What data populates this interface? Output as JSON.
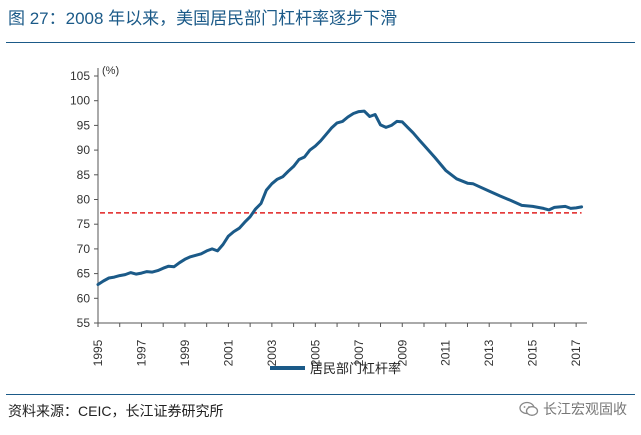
{
  "header": {
    "title": "图 27：2008 年以来，美国居民部门杠杆率逐步下滑"
  },
  "footer": {
    "source": "资料来源：CEIC，长江证券研究所",
    "watermark": "长江宏观固收",
    "watermark_icon": "wechat-icon"
  },
  "colors": {
    "accent": "#1b5a88",
    "series": "#1b5a88",
    "reference": "#e02020"
  },
  "chart_data": {
    "type": "line",
    "title": "",
    "xlabel": "",
    "ylabel": "(%)",
    "xlim": [
      1995,
      2017.5
    ],
    "ylim": [
      55,
      105
    ],
    "yticks": [
      55,
      60,
      65,
      70,
      75,
      80,
      85,
      90,
      95,
      100,
      105
    ],
    "xticks": [
      "1995",
      "1997",
      "1999",
      "2001",
      "2003",
      "2005",
      "2007",
      "2009",
      "2011",
      "2013",
      "2015",
      "2017"
    ],
    "grid": false,
    "legend": "bottom-center",
    "series": [
      {
        "name": "居民部门杠杆率",
        "x": [
          1995.0,
          1995.25,
          1995.5,
          1995.75,
          1996.0,
          1996.25,
          1996.5,
          1996.75,
          1997.0,
          1997.25,
          1997.5,
          1997.75,
          1998.0,
          1998.25,
          1998.5,
          1998.75,
          1999.0,
          1999.25,
          1999.5,
          1999.75,
          2000.0,
          2000.25,
          2000.5,
          2000.75,
          2001.0,
          2001.25,
          2001.5,
          2001.75,
          2002.0,
          2002.25,
          2002.5,
          2002.75,
          2003.0,
          2003.25,
          2003.5,
          2003.75,
          2004.0,
          2004.25,
          2004.5,
          2004.75,
          2005.0,
          2005.25,
          2005.5,
          2005.75,
          2006.0,
          2006.25,
          2006.5,
          2006.75,
          2007.0,
          2007.25,
          2007.5,
          2007.75,
          2008.0,
          2008.25,
          2008.5,
          2008.75,
          2009.0,
          2009.25,
          2009.5,
          2009.75,
          2010.0,
          2010.5,
          2011.0,
          2011.5,
          2012.0,
          2012.25,
          2012.5,
          2013.0,
          2013.5,
          2014.0,
          2014.5,
          2015.0,
          2015.5,
          2015.75,
          2016.0,
          2016.25,
          2016.5,
          2016.75,
          2017.0,
          2017.25
        ],
        "values": [
          62.8,
          63.5,
          64.1,
          64.3,
          64.6,
          64.8,
          65.2,
          64.9,
          65.1,
          65.4,
          65.3,
          65.6,
          66.1,
          66.5,
          66.4,
          67.2,
          67.9,
          68.4,
          68.7,
          69.0,
          69.6,
          70.0,
          69.6,
          70.9,
          72.6,
          73.5,
          74.2,
          75.4,
          76.5,
          78.1,
          79.2,
          81.9,
          83.2,
          84.1,
          84.6,
          85.7,
          86.7,
          88.1,
          88.6,
          90.0,
          90.8,
          91.9,
          93.2,
          94.5,
          95.5,
          95.8,
          96.7,
          97.4,
          97.8,
          97.9,
          96.8,
          97.2,
          95.1,
          94.6,
          95.0,
          95.8,
          95.7,
          94.6,
          93.5,
          92.2,
          91.0,
          88.5,
          85.9,
          84.2,
          83.3,
          83.2,
          82.7,
          81.7,
          80.7,
          79.8,
          78.8,
          78.6,
          78.2,
          77.9,
          78.4,
          78.5,
          78.6,
          78.2,
          78.3,
          78.5
        ]
      }
    ],
    "reference_line": {
      "y": 77.3,
      "style": "dashed"
    }
  }
}
